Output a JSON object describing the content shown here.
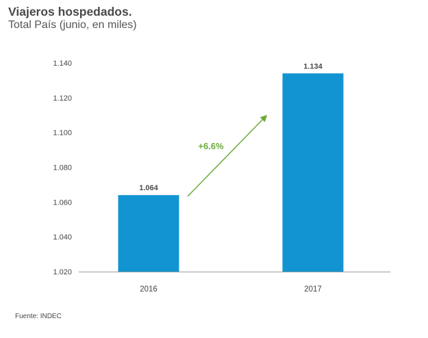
{
  "header": {
    "title": "Viajeros hospedados.",
    "subtitle": "Total País (junio, en miles)"
  },
  "footer": {
    "source": "Fuente: INDEC"
  },
  "chart_data": {
    "type": "bar",
    "title": "Viajeros hospedados.",
    "subtitle": "Total País (junio, en miles)",
    "xlabel": "",
    "ylabel": "",
    "categories": [
      "2016",
      "2017"
    ],
    "values": [
      1064,
      1134
    ],
    "value_labels": [
      "1.064",
      "1.134"
    ],
    "ylim": [
      1020,
      1140
    ],
    "yticks": [
      1020,
      1040,
      1060,
      1080,
      1100,
      1120,
      1140
    ],
    "ytick_labels": [
      "1.020",
      "1.040",
      "1.060",
      "1.080",
      "1.100",
      "1.120",
      "1.140"
    ],
    "grid": false,
    "bar_color": "#1394d2",
    "annotation": {
      "text": "+6.6%",
      "color": "#6aaa3a"
    }
  }
}
